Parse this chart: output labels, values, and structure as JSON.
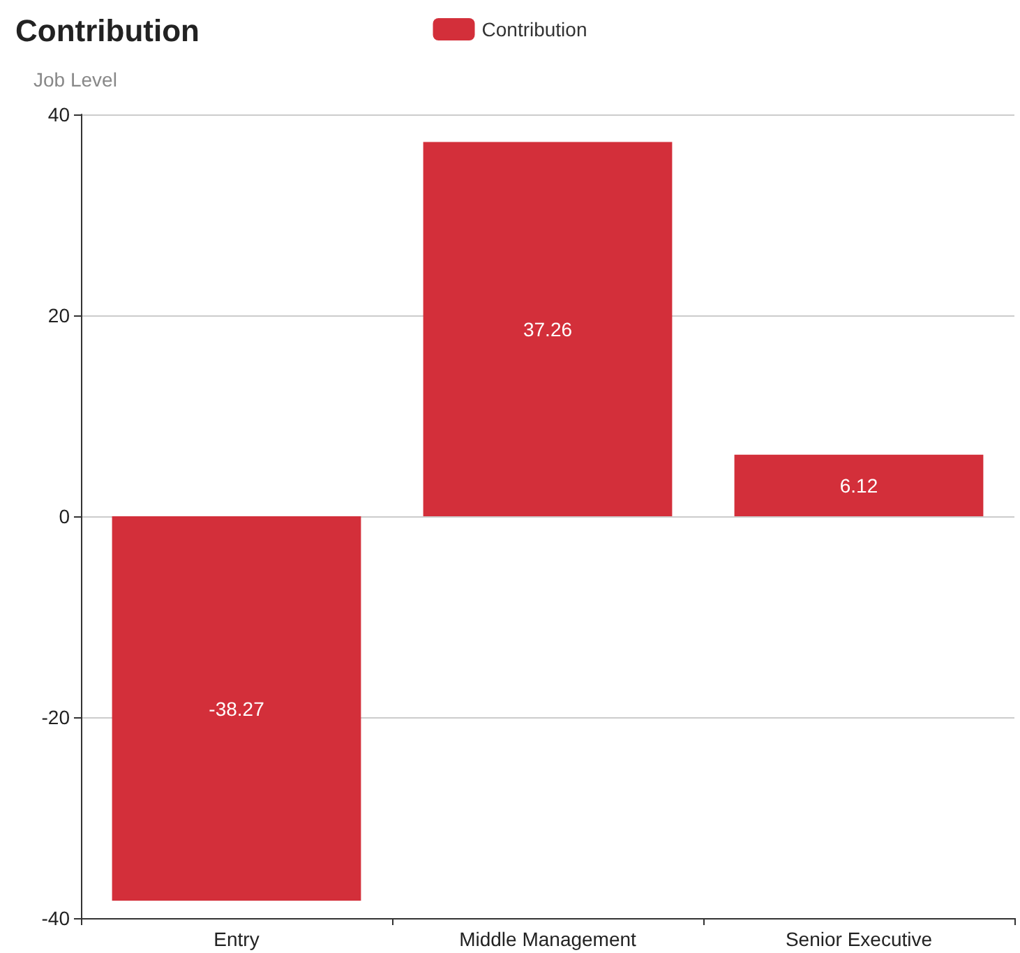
{
  "chart_data": {
    "type": "bar",
    "title": "Contribution",
    "ylabel": "Job Level",
    "categories": [
      "Entry",
      "Middle Management",
      "Senior Executive"
    ],
    "series": [
      {
        "name": "Contribution",
        "color": "#d32f3a",
        "values": [
          -38.27,
          37.26,
          6.12
        ]
      }
    ],
    "ylim": [
      -40,
      40
    ],
    "yticks": [
      -40,
      -20,
      0,
      20,
      40
    ],
    "grid": "y",
    "legend": "top",
    "data_labels": true
  }
}
